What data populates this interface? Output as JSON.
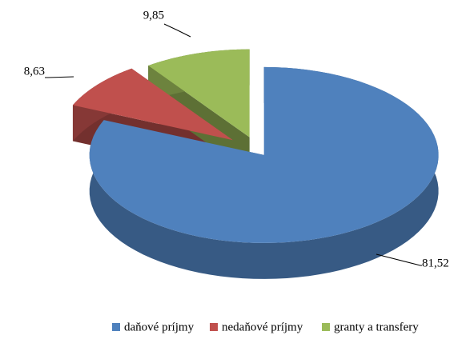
{
  "chart_data": {
    "type": "pie",
    "three_d": true,
    "categories": [
      "daňové príjmy",
      "nedaňové príjmy",
      "granty a transfery"
    ],
    "values": [
      81.52,
      8.63,
      9.85
    ],
    "value_labels": [
      "81,52",
      "8,63",
      "9,85"
    ],
    "colors": [
      "#4f81bd",
      "#c0504d",
      "#9bbb59"
    ],
    "legend": "bottom"
  }
}
